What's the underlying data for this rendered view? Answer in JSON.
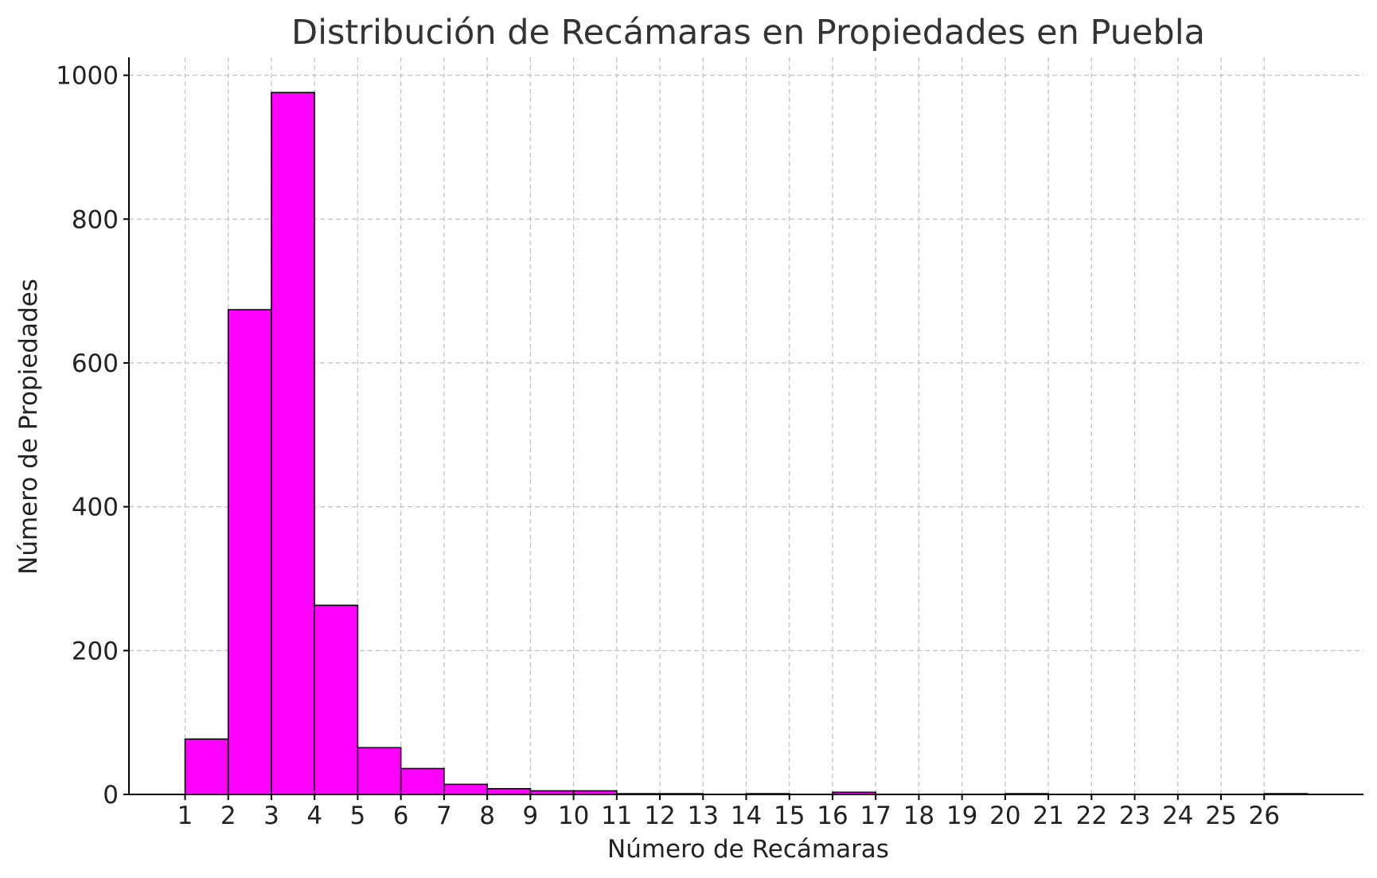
{
  "chart_data": {
    "type": "bar",
    "title": "Distribución de Recámaras en Propiedades en Puebla",
    "xlabel": "Número de Recámaras",
    "ylabel": "Número de Propiedades",
    "bar_color": "#ff00ff",
    "edge_color": "#000000",
    "grid": true,
    "xlim": [
      -0.3,
      28.3
    ],
    "ylim": [
      0,
      1025
    ],
    "x_ticks": [
      1,
      2,
      3,
      4,
      5,
      6,
      7,
      8,
      9,
      10,
      11,
      12,
      13,
      14,
      15,
      16,
      17,
      18,
      19,
      20,
      21,
      22,
      23,
      24,
      25,
      26
    ],
    "y_ticks": [
      0,
      200,
      400,
      600,
      800,
      1000
    ],
    "bins": [
      {
        "start": 1,
        "end": 2,
        "count": 77
      },
      {
        "start": 2,
        "end": 3,
        "count": 674
      },
      {
        "start": 3,
        "end": 4,
        "count": 976
      },
      {
        "start": 4,
        "end": 5,
        "count": 263
      },
      {
        "start": 5,
        "end": 6,
        "count": 65
      },
      {
        "start": 6,
        "end": 7,
        "count": 36
      },
      {
        "start": 7,
        "end": 8,
        "count": 14
      },
      {
        "start": 8,
        "end": 9,
        "count": 8
      },
      {
        "start": 9,
        "end": 10,
        "count": 5
      },
      {
        "start": 10,
        "end": 11,
        "count": 5
      },
      {
        "start": 11,
        "end": 12,
        "count": 1
      },
      {
        "start": 12,
        "end": 13,
        "count": 1
      },
      {
        "start": 13,
        "end": 14,
        "count": 0
      },
      {
        "start": 14,
        "end": 15,
        "count": 1
      },
      {
        "start": 15,
        "end": 16,
        "count": 0
      },
      {
        "start": 16,
        "end": 17,
        "count": 3
      },
      {
        "start": 17,
        "end": 18,
        "count": 0
      },
      {
        "start": 18,
        "end": 19,
        "count": 0
      },
      {
        "start": 19,
        "end": 20,
        "count": 0
      },
      {
        "start": 20,
        "end": 21,
        "count": 1
      },
      {
        "start": 21,
        "end": 22,
        "count": 0
      },
      {
        "start": 22,
        "end": 23,
        "count": 0
      },
      {
        "start": 23,
        "end": 24,
        "count": 0
      },
      {
        "start": 24,
        "end": 25,
        "count": 0
      },
      {
        "start": 25,
        "end": 26,
        "count": 0
      },
      {
        "start": 26,
        "end": 27,
        "count": 1
      }
    ]
  }
}
